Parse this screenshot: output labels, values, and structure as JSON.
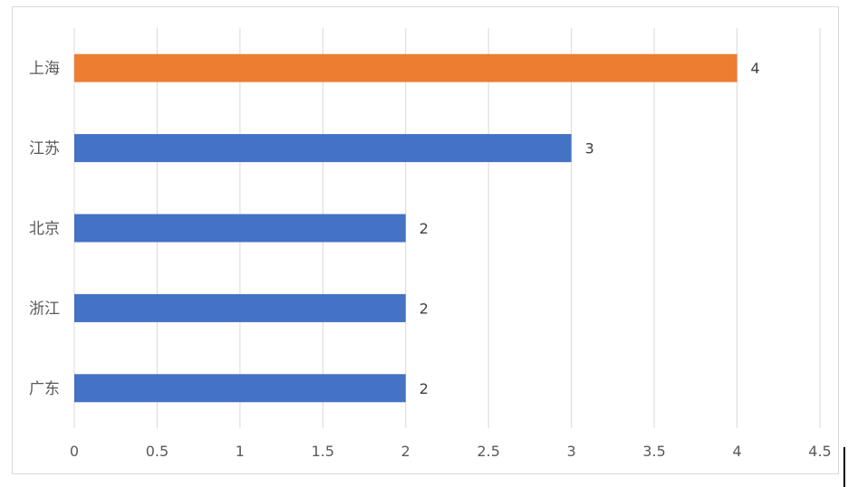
{
  "chart_data": {
    "type": "bar",
    "orientation": "horizontal",
    "categories": [
      "上海",
      "江苏",
      "北京",
      "浙江",
      "广东"
    ],
    "values": [
      4,
      3,
      2,
      2,
      2
    ],
    "bar_colors": [
      "#ED7D31",
      "#4472C4",
      "#4472C4",
      "#4472C4",
      "#4472C4"
    ],
    "xlim": [
      0,
      4.5
    ],
    "xticks": [
      "0",
      "0.5",
      "1",
      "1.5",
      "2",
      "2.5",
      "3",
      "3.5",
      "4",
      "4.5"
    ],
    "data_labels": [
      "4",
      "3",
      "2",
      "2",
      "2"
    ],
    "grid": true,
    "title": "",
    "xlabel": "",
    "ylabel": ""
  },
  "colors": {
    "highlight": "#ED7D31",
    "primary": "#4472C4",
    "grid": "#D9D9D9"
  }
}
